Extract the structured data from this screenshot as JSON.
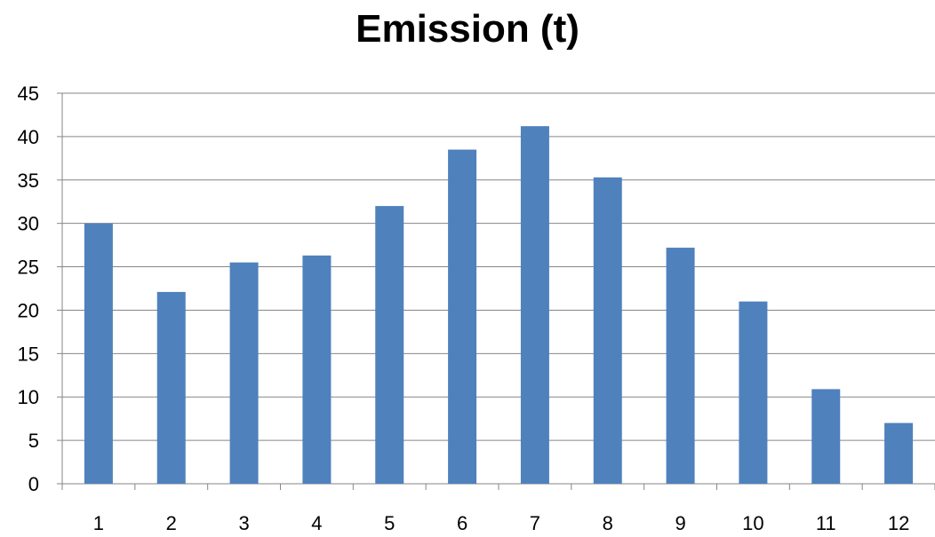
{
  "chart_data": {
    "type": "bar",
    "title": "Emission (t)",
    "categories": [
      "1",
      "2",
      "3",
      "4",
      "5",
      "6",
      "7",
      "8",
      "9",
      "10",
      "11",
      "12"
    ],
    "values": [
      30,
      22.1,
      25.5,
      26.3,
      32,
      38.5,
      41.2,
      35.3,
      27.2,
      21,
      10.9,
      7
    ],
    "xlabel": "",
    "ylabel": "",
    "ylim": [
      0,
      45
    ],
    "yticks": [
      0,
      5,
      10,
      15,
      20,
      25,
      30,
      35,
      40,
      45
    ],
    "grid": true,
    "legend": "none",
    "bar_color": "#4F81BD",
    "grid_color": "#868686"
  }
}
